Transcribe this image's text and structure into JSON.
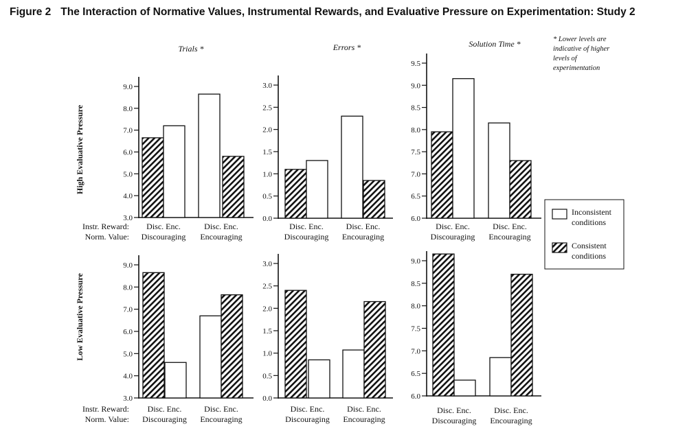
{
  "figure": {
    "label": "Figure 2",
    "title": "The Interaction of Normative Values, Instrumental Rewards, and Evaluative Pressure on Experimentation: Study 2"
  },
  "footnote": [
    "* Lower levels are",
    "indicative of  higher",
    "levels of",
    "experimentation"
  ],
  "row_labels": [
    "High Evaluative Pressure",
    "Low Evaluative Pressure"
  ],
  "x_axis": {
    "row_titles": [
      "Instr. Reward:",
      "Norm. Value:"
    ],
    "tick_pairs": [
      "Disc. Enc.",
      "Disc. Enc."
    ],
    "groups": [
      "Discouraging",
      "Encouraging"
    ]
  },
  "legend": [
    {
      "lines": [
        "Inconsistent",
        "conditions"
      ],
      "fill": "none"
    },
    {
      "lines": [
        "Consistent",
        "conditions"
      ],
      "fill": "hatch"
    }
  ],
  "colors": {
    "ink": "#111111",
    "background": "#ffffff"
  },
  "chart_data": [
    {
      "type": "bar",
      "panel": "High Evaluative Pressure - Trials",
      "title": "Trials *",
      "ylim": [
        3.0,
        9.0
      ],
      "yticks": [
        "3.0",
        "4.0",
        "5.0",
        "6.0",
        "7.0",
        "8.0",
        "9.0"
      ],
      "bars": [
        {
          "norm": "Discouraging",
          "reward": "Disc.",
          "condition": "Consistent",
          "value": 6.65
        },
        {
          "norm": "Discouraging",
          "reward": "Enc.",
          "condition": "Inconsistent",
          "value": 7.2
        },
        {
          "norm": "Encouraging",
          "reward": "Disc.",
          "condition": "Inconsistent",
          "value": 8.65
        },
        {
          "norm": "Encouraging",
          "reward": "Enc.",
          "condition": "Consistent",
          "value": 5.8
        }
      ]
    },
    {
      "type": "bar",
      "panel": "High Evaluative Pressure - Errors",
      "title": "Errors *",
      "ylim": [
        0.0,
        3.0
      ],
      "yticks": [
        "0.0",
        "0.5",
        "1.0",
        "1.5",
        "2.0",
        "2.5",
        "3.0"
      ],
      "bars": [
        {
          "norm": "Discouraging",
          "reward": "Disc.",
          "condition": "Consistent",
          "value": 1.1
        },
        {
          "norm": "Discouraging",
          "reward": "Enc.",
          "condition": "Inconsistent",
          "value": 1.3
        },
        {
          "norm": "Encouraging",
          "reward": "Disc.",
          "condition": "Inconsistent",
          "value": 2.3
        },
        {
          "norm": "Encouraging",
          "reward": "Enc.",
          "condition": "Consistent",
          "value": 0.85
        }
      ]
    },
    {
      "type": "bar",
      "panel": "High Evaluative Pressure - Solution Time",
      "title": "Solution Time *",
      "ylim": [
        6.0,
        9.5
      ],
      "yticks": [
        "6.0",
        "6.5",
        "7.0",
        "7.5",
        "8.0",
        "8.5",
        "9.0",
        "9.5"
      ],
      "bars": [
        {
          "norm": "Discouraging",
          "reward": "Disc.",
          "condition": "Consistent",
          "value": 7.95
        },
        {
          "norm": "Discouraging",
          "reward": "Enc.",
          "condition": "Inconsistent",
          "value": 9.15
        },
        {
          "norm": "Encouraging",
          "reward": "Disc.",
          "condition": "Inconsistent",
          "value": 8.15
        },
        {
          "norm": "Encouraging",
          "reward": "Enc.",
          "condition": "Consistent",
          "value": 7.3
        }
      ]
    },
    {
      "type": "bar",
      "panel": "Low Evaluative Pressure - Trials",
      "title": "",
      "ylim": [
        3.0,
        9.0
      ],
      "yticks": [
        "3.0",
        "4.0",
        "5.0",
        "6.0",
        "7.0",
        "8.0",
        "9.0"
      ],
      "bars": [
        {
          "norm": "Discouraging",
          "reward": "Disc.",
          "condition": "Consistent",
          "value": 8.65
        },
        {
          "norm": "Discouraging",
          "reward": "Enc.",
          "condition": "Inconsistent",
          "value": 4.6
        },
        {
          "norm": "Encouraging",
          "reward": "Disc.",
          "condition": "Inconsistent",
          "value": 6.7
        },
        {
          "norm": "Encouraging",
          "reward": "Enc.",
          "condition": "Consistent",
          "value": 7.65
        }
      ]
    },
    {
      "type": "bar",
      "panel": "Low Evaluative Pressure - Errors",
      "title": "",
      "ylim": [
        0.0,
        3.0
      ],
      "yticks": [
        "0.0",
        "0.5",
        "1.0",
        "1.5",
        "2.0",
        "2.5",
        "3.0"
      ],
      "bars": [
        {
          "norm": "Discouraging",
          "reward": "Disc.",
          "condition": "Consistent",
          "value": 2.4
        },
        {
          "norm": "Discouraging",
          "reward": "Enc.",
          "condition": "Inconsistent",
          "value": 0.85
        },
        {
          "norm": "Encouraging",
          "reward": "Disc.",
          "condition": "Inconsistent",
          "value": 1.07
        },
        {
          "norm": "Encouraging",
          "reward": "Enc.",
          "condition": "Consistent",
          "value": 2.15
        }
      ]
    },
    {
      "type": "bar",
      "panel": "Low Evaluative Pressure - Solution Time",
      "title": "",
      "ylim": [
        6.0,
        9.0
      ],
      "yticks": [
        "6.0",
        "6.5",
        "7.0",
        "7.5",
        "8.0",
        "8.5",
        "9.0"
      ],
      "bars": [
        {
          "norm": "Discouraging",
          "reward": "Disc.",
          "condition": "Consistent",
          "value": 9.15
        },
        {
          "norm": "Discouraging",
          "reward": "Enc.",
          "condition": "Inconsistent",
          "value": 6.35
        },
        {
          "norm": "Encouraging",
          "reward": "Disc.",
          "condition": "Inconsistent",
          "value": 6.85
        },
        {
          "norm": "Encouraging",
          "reward": "Enc.",
          "condition": "Consistent",
          "value": 8.7
        }
      ]
    }
  ]
}
